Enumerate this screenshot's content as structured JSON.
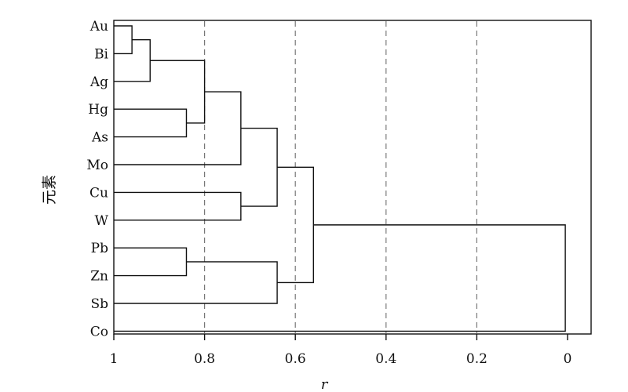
{
  "chart_data": {
    "type": "dendrogram",
    "xlabel": "r",
    "ylabel": "元素",
    "xlim": [
      1,
      0
    ],
    "x_ticks": [
      {
        "value": 1,
        "label": "1"
      },
      {
        "value": 0.8,
        "label": "0.8"
      },
      {
        "value": 0.6,
        "label": "0.6"
      },
      {
        "value": 0.4,
        "label": "0.4"
      },
      {
        "value": 0.2,
        "label": "0.2"
      },
      {
        "value": 0,
        "label": "0"
      }
    ],
    "grid_lines": [
      0.8,
      0.6,
      0.4,
      0.2
    ],
    "leaves": [
      "Au",
      "Bi",
      "Ag",
      "Hg",
      "As",
      "Mo",
      "Cu",
      "W",
      "Pb",
      "Zn",
      "Sb",
      "Co"
    ],
    "merges": [
      {
        "left": "Au",
        "right": "Bi",
        "r": 0.96
      },
      {
        "left": "Au-Bi",
        "right": "Ag",
        "r": 0.92
      },
      {
        "left": "Hg",
        "right": "As",
        "r": 0.84
      },
      {
        "left": "Au-Bi-Ag",
        "right": "Hg-As",
        "r": 0.8
      },
      {
        "left": "Au-Bi-Ag-Hg-As",
        "right": "Mo",
        "r": 0.72
      },
      {
        "left": "Cu",
        "right": "W",
        "r": 0.72
      },
      {
        "left": "Au-Bi-Ag-Hg-As-Mo",
        "right": "Cu-W",
        "r": 0.64
      },
      {
        "left": "Pb",
        "right": "Zn",
        "r": 0.84
      },
      {
        "left": "Pb-Zn",
        "right": "Sb",
        "r": 0.64
      },
      {
        "left": "Au-Bi-Ag-Hg-As-Mo-Cu-W",
        "right": "Pb-Zn-Sb",
        "r": 0.56
      },
      {
        "left": "Au-Bi-Ag-Hg-As-Mo-Cu-W-Pb-Zn-Sb",
        "right": "Co",
        "r": 0.005
      }
    ]
  }
}
